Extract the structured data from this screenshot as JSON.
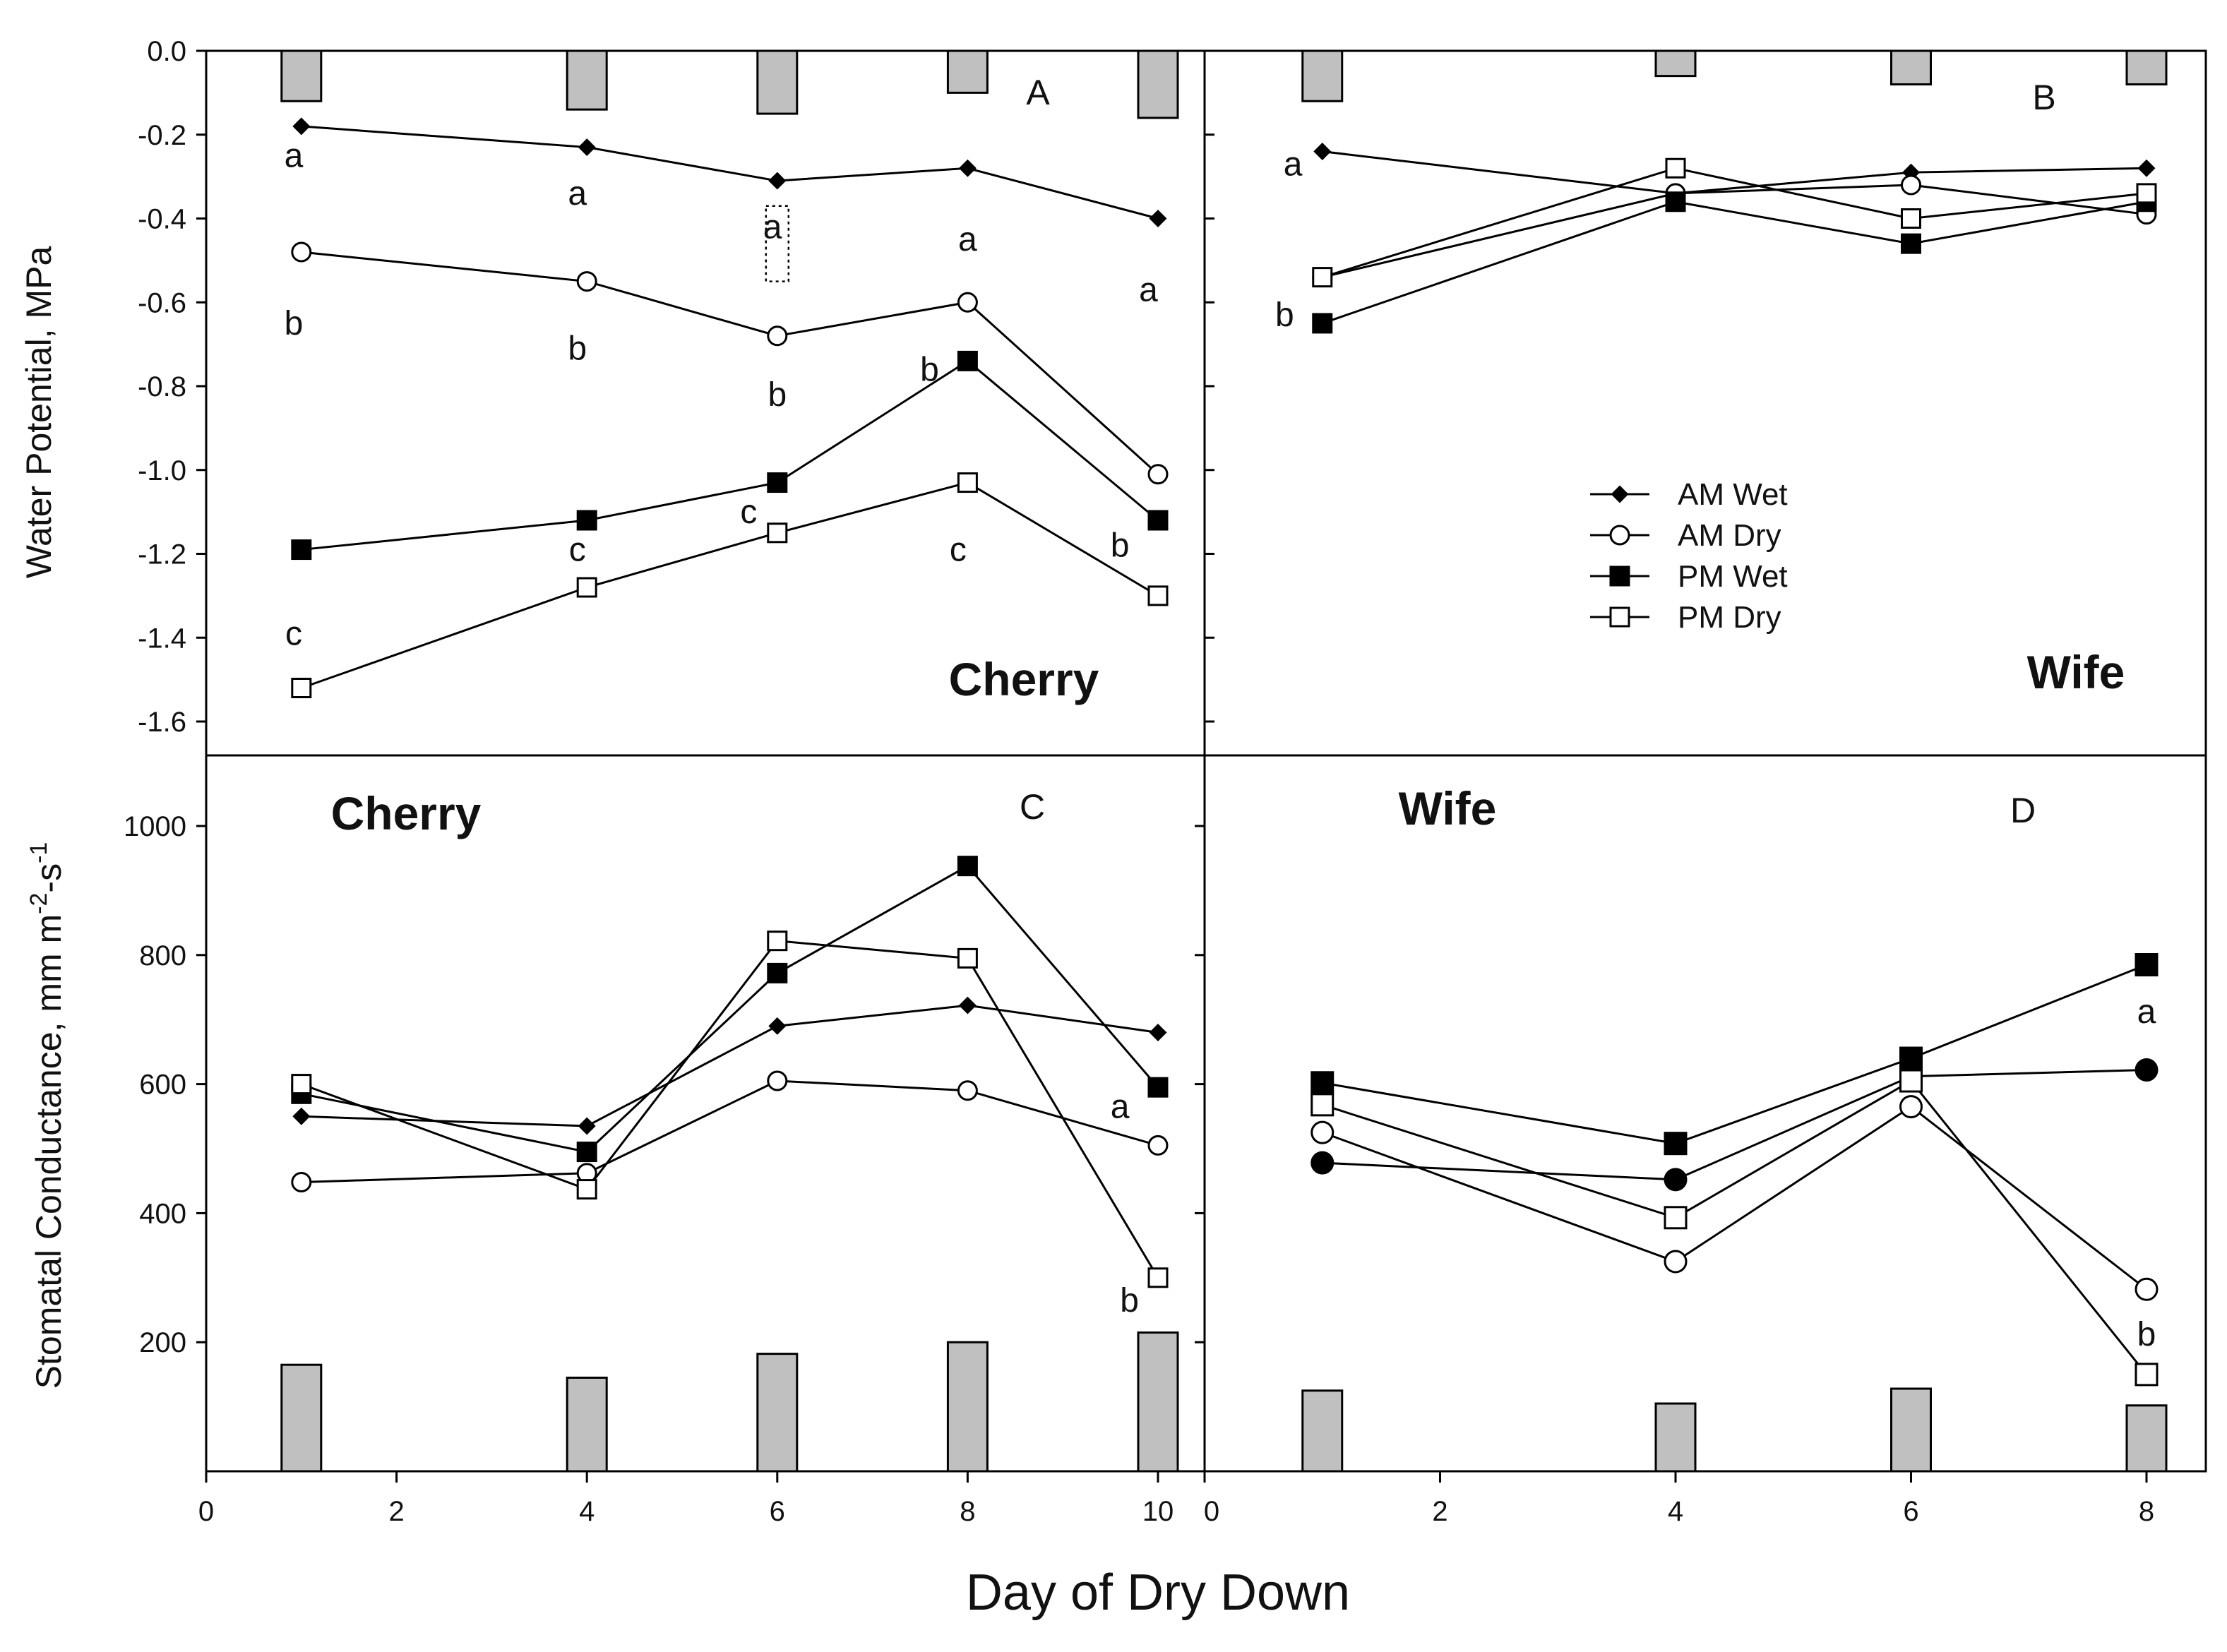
{
  "xlabel": "Day of Dry Down",
  "ylabel_top": "Water Potential, MPa",
  "ylabel_bottom": "Stomatal Conductance, mm m-2-s-1",
  "legend": [
    {
      "name": "AM Wet",
      "marker": "diamond-filled"
    },
    {
      "name": "AM Dry",
      "marker": "circle-open"
    },
    {
      "name": "PM Wet",
      "marker": "square-filled"
    },
    {
      "name": "PM Dry",
      "marker": "square-open"
    }
  ],
  "colors": {
    "line": "#000000",
    "bar_fill": "#c0c0c0",
    "open_fill": "#ffffff"
  },
  "chart_data": [
    {
      "type": "line",
      "panel": "A",
      "crop": "Cherry",
      "xlim": [
        0,
        10.5
      ],
      "ylim": [
        -1.75,
        0
      ],
      "yticks": [
        0.0,
        -0.2,
        -0.4,
        -0.6,
        -0.8,
        -1.0,
        -1.2,
        -1.4,
        -1.6
      ],
      "ytick_labels": [
        "0.0",
        "-0.2",
        "-0.4",
        "-0.6",
        "-0.8",
        "-1.0",
        "-1.2",
        "-1.4",
        "-1.6"
      ],
      "x": [
        1,
        4,
        6,
        8,
        10
      ],
      "series": [
        {
          "name": "AM Wet",
          "values": [
            -0.18,
            -0.23,
            -0.31,
            -0.28,
            -0.4
          ]
        },
        {
          "name": "AM Dry",
          "values": [
            -0.48,
            -0.55,
            -0.68,
            -0.6,
            -1.01
          ]
        },
        {
          "name": "PM Wet",
          "values": [
            -1.19,
            -1.12,
            -1.03,
            -0.74,
            -1.12
          ]
        },
        {
          "name": "PM Dry",
          "values": [
            -1.52,
            -1.28,
            -1.15,
            -1.03,
            -1.3
          ]
        }
      ],
      "bars": {
        "x": [
          1,
          4,
          6,
          8,
          10
        ],
        "values": [
          -0.12,
          -0.14,
          -0.15,
          -0.1,
          -0.16
        ]
      },
      "error_bar": {
        "x": 6,
        "low": -0.55,
        "high": -0.37
      },
      "annotations": [
        {
          "text": "a",
          "x": 0.92,
          "y": -0.25
        },
        {
          "text": "a",
          "x": 3.9,
          "y": -0.34
        },
        {
          "text": "a",
          "x": 5.95,
          "y": -0.42
        },
        {
          "text": "a",
          "x": 8.0,
          "y": -0.45
        },
        {
          "text": "a",
          "x": 9.9,
          "y": -0.57
        },
        {
          "text": "b",
          "x": 0.92,
          "y": -0.65
        },
        {
          "text": "b",
          "x": 3.9,
          "y": -0.71
        },
        {
          "text": "b",
          "x": 6.0,
          "y": -0.82
        },
        {
          "text": "b",
          "x": 7.6,
          "y": -0.76
        },
        {
          "text": "b",
          "x": 9.6,
          "y": -1.18
        },
        {
          "text": "c",
          "x": 0.92,
          "y": -1.39
        },
        {
          "text": "c",
          "x": 3.9,
          "y": -1.19
        },
        {
          "text": "c",
          "x": 5.7,
          "y": -1.1
        },
        {
          "text": "c",
          "x": 7.9,
          "y": -1.19
        }
      ]
    },
    {
      "type": "line",
      "panel": "B",
      "crop": "Wife",
      "xlim": [
        0,
        8.5
      ],
      "ylim": [
        -1.75,
        0
      ],
      "x": [
        1,
        4,
        6,
        8
      ],
      "series": [
        {
          "name": "AM Wet",
          "values": [
            -0.24,
            -0.34,
            -0.29,
            -0.28
          ]
        },
        {
          "name": "AM Dry",
          "values": [
            -0.54,
            -0.34,
            -0.32,
            -0.39
          ]
        },
        {
          "name": "PM Wet",
          "values": [
            -0.65,
            -0.36,
            -0.46,
            -0.36
          ]
        },
        {
          "name": "PM Dry",
          "values": [
            -0.54,
            -0.28,
            -0.4,
            -0.34
          ]
        }
      ],
      "bars": {
        "x": [
          1,
          4,
          6,
          8
        ],
        "values": [
          -0.12,
          -0.06,
          -0.08,
          -0.08
        ]
      },
      "annotations": [
        {
          "text": "a",
          "x": 0.75,
          "y": -0.27
        },
        {
          "text": "b",
          "x": 0.68,
          "y": -0.63
        }
      ]
    },
    {
      "type": "line",
      "panel": "C",
      "crop": "Cherry",
      "xlim": [
        0,
        10.5
      ],
      "ylim": [
        0,
        1100
      ],
      "yticks": [
        200,
        400,
        600,
        800,
        1000
      ],
      "ytick_labels": [
        "200",
        "400",
        "600",
        "800",
        "1000"
      ],
      "xticks": [
        0,
        2,
        4,
        6,
        8,
        10
      ],
      "xtick_labels": [
        "0",
        "2",
        "4",
        "6",
        "8",
        "10"
      ],
      "x": [
        1,
        4,
        6,
        8,
        10
      ],
      "series": [
        {
          "name": "AM Wet",
          "values": [
            550,
            535,
            690,
            722,
            680
          ]
        },
        {
          "name": "AM Dry",
          "values": [
            448,
            462,
            605,
            590,
            505
          ]
        },
        {
          "name": "PM Wet",
          "values": [
            585,
            495,
            772,
            938,
            595
          ]
        },
        {
          "name": "PM Dry",
          "values": [
            600,
            437,
            822,
            795,
            300
          ]
        }
      ],
      "bars": {
        "x": [
          1,
          4,
          6,
          8,
          10
        ],
        "values": [
          165,
          145,
          182,
          200,
          215
        ]
      },
      "annotations": [
        {
          "text": "a",
          "x": 9.6,
          "y": 565
        },
        {
          "text": "b",
          "x": 9.7,
          "y": 265
        }
      ]
    },
    {
      "type": "line",
      "panel": "D",
      "crop": "Wife",
      "xlim": [
        0,
        8.5
      ],
      "ylim": [
        0,
        1100
      ],
      "xticks": [
        0,
        2,
        4,
        6,
        8
      ],
      "xtick_labels": [
        "0",
        "2",
        "4",
        "6",
        "8"
      ],
      "x": [
        1,
        4,
        6,
        8
      ],
      "series": [
        {
          "name": "AM Wet",
          "values": [
            478,
            452,
            612,
            622
          ]
        },
        {
          "name": "AM Dry",
          "values": [
            525,
            325,
            565,
            282
          ]
        },
        {
          "name": "PM Wet",
          "values": [
            602,
            508,
            640,
            785
          ]
        },
        {
          "name": "PM Dry",
          "values": [
            568,
            393,
            605,
            150
          ]
        }
      ],
      "bars": {
        "x": [
          1,
          4,
          6,
          8
        ],
        "values": [
          125,
          105,
          128,
          102
        ]
      },
      "annotations": [
        {
          "text": "a",
          "x": 8.0,
          "y": 712
        },
        {
          "text": "b",
          "x": 8.0,
          "y": 212
        }
      ]
    }
  ]
}
